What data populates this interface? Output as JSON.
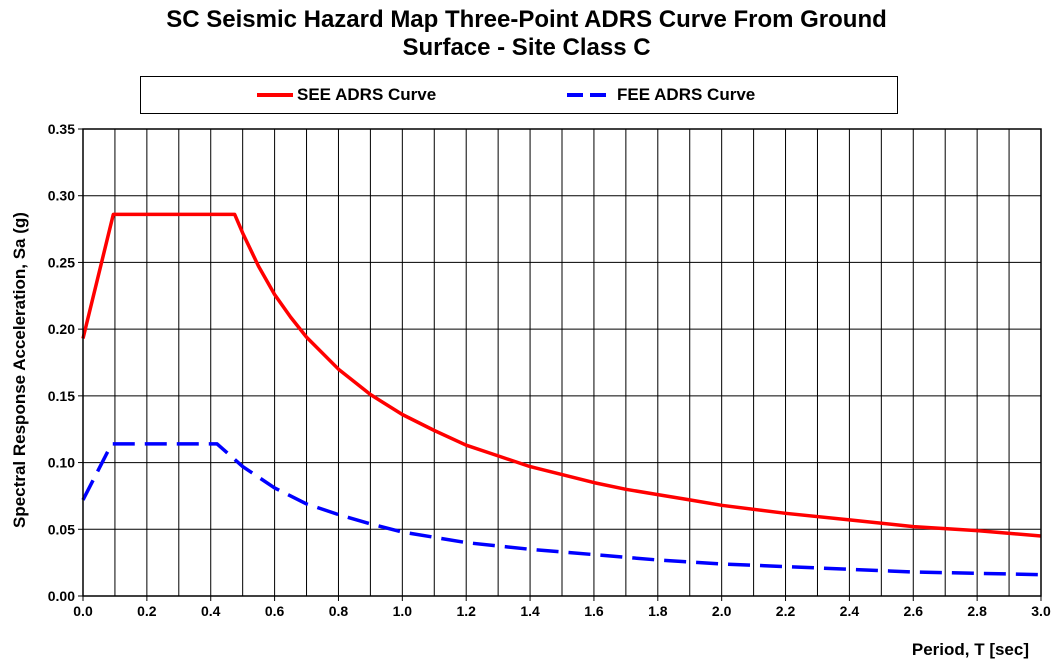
{
  "chart_data": {
    "type": "line",
    "title_line1": "SC Seismic Hazard Map Three-Point ADRS Curve From Ground",
    "title_line2": "Surface - Site Class C",
    "xlabel": "Period, T [sec]",
    "ylabel": "Spectral Response Acceleration, Sa (g)",
    "xlim": [
      0,
      3.0
    ],
    "ylim": [
      0,
      0.35
    ],
    "x_ticks": [
      "0.0",
      "0.2",
      "0.4",
      "0.6",
      "0.8",
      "1.0",
      "1.2",
      "1.4",
      "1.6",
      "1.8",
      "2.0",
      "2.2",
      "2.4",
      "2.6",
      "2.8",
      "3.0"
    ],
    "y_ticks": [
      "0.00",
      "0.05",
      "0.10",
      "0.15",
      "0.20",
      "0.25",
      "0.30",
      "0.35"
    ],
    "grid": true,
    "legend_position": "top",
    "series": [
      {
        "name": "SEE ADRS Curve",
        "color": "#ff0000",
        "style": "solid",
        "x": [
          0.0,
          0.095,
          0.2,
          0.3,
          0.4,
          0.475,
          0.5,
          0.55,
          0.6,
          0.65,
          0.7,
          0.8,
          0.9,
          1.0,
          1.1,
          1.2,
          1.3,
          1.4,
          1.5,
          1.6,
          1.7,
          1.8,
          1.9,
          2.0,
          2.2,
          2.4,
          2.6,
          2.8,
          3.0
        ],
        "y": [
          0.193,
          0.286,
          0.286,
          0.286,
          0.286,
          0.286,
          0.272,
          0.247,
          0.226,
          0.209,
          0.194,
          0.17,
          0.151,
          0.136,
          0.124,
          0.113,
          0.105,
          0.097,
          0.091,
          0.085,
          0.08,
          0.076,
          0.072,
          0.068,
          0.062,
          0.057,
          0.052,
          0.049,
          0.045
        ]
      },
      {
        "name": "FEE ADRS Curve",
        "color": "#0000ff",
        "style": "dashed",
        "x": [
          0.0,
          0.09,
          0.2,
          0.3,
          0.42,
          0.5,
          0.6,
          0.7,
          0.8,
          0.9,
          1.0,
          1.2,
          1.4,
          1.6,
          1.8,
          2.0,
          2.2,
          2.4,
          2.6,
          2.8,
          3.0
        ],
        "y": [
          0.072,
          0.114,
          0.114,
          0.114,
          0.114,
          0.097,
          0.081,
          0.069,
          0.061,
          0.054,
          0.048,
          0.04,
          0.035,
          0.031,
          0.027,
          0.024,
          0.022,
          0.02,
          0.018,
          0.017,
          0.016
        ]
      }
    ]
  }
}
